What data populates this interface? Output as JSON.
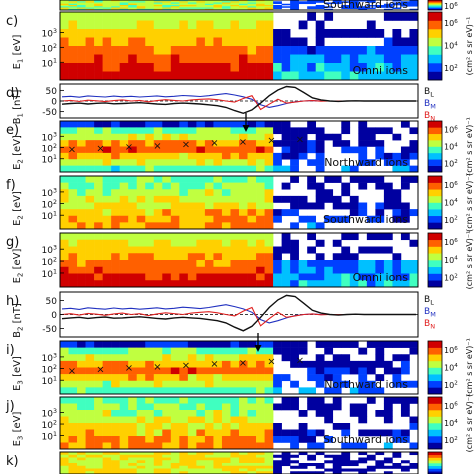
{
  "panels": [
    {
      "id": "b",
      "kind": "spec",
      "letter": "",
      "ylabel": "",
      "tag": "Southward ions",
      "crop": true
    },
    {
      "id": "c",
      "kind": "spec",
      "letter": "c)",
      "ylabel": "E",
      "sub": "1",
      "unit": "[eV]",
      "tag": "Omni ions"
    },
    {
      "id": "d",
      "kind": "line",
      "letter": "d)",
      "ylabel": "B",
      "sub": "1",
      "unit": "[nT]"
    },
    {
      "id": "e",
      "kind": "spec",
      "letter": "e)",
      "ylabel": "E",
      "sub": "2",
      "unit": "[eV]",
      "tag": "Northward ions",
      "marks": true
    },
    {
      "id": "f",
      "kind": "spec",
      "letter": "f)",
      "ylabel": "E",
      "sub": "2",
      "unit": "[eV]",
      "tag": "Southward ions"
    },
    {
      "id": "g",
      "kind": "spec",
      "letter": "g)",
      "ylabel": "E",
      "sub": "2",
      "unit": "[eV]",
      "tag": "Omni ions"
    },
    {
      "id": "h",
      "kind": "line",
      "letter": "h)",
      "ylabel": "B",
      "sub": "2",
      "unit": "[nT]"
    },
    {
      "id": "i",
      "kind": "spec",
      "letter": "i)",
      "ylabel": "E",
      "sub": "3",
      "unit": "[eV]",
      "tag": "Northward ions",
      "marks": true
    },
    {
      "id": "j",
      "kind": "spec",
      "letter": "j)",
      "ylabel": "E",
      "sub": "3",
      "unit": "[eV]",
      "tag": "Southward ions"
    },
    {
      "id": "k",
      "kind": "spec",
      "letter": "k)",
      "ylabel": "",
      "tag": "",
      "crop": true
    }
  ],
  "chart_data": {
    "type": "heatmap",
    "spec_ticks": [
      {
        "base": "10",
        "exp": "3"
      },
      {
        "base": "10",
        "exp": "2"
      },
      {
        "base": "10",
        "exp": "1"
      }
    ],
    "b_ticks": [
      "50",
      "0",
      "-50"
    ],
    "b_lim": [
      -80,
      80
    ],
    "legend": [
      {
        "base": "B",
        "sub": "L",
        "color": "#111111"
      },
      {
        "base": "B",
        "sub": "M",
        "color": "#2030c0"
      },
      {
        "base": "B",
        "sub": "N",
        "color": "#e02020"
      }
    ],
    "colorbar": {
      "label": "(cm² s sr eV)⁻¹",
      "ticks": [
        {
          "base": "10",
          "exp": "6"
        },
        {
          "base": "10",
          "exp": "4"
        },
        {
          "base": "10",
          "exp": "2"
        }
      ],
      "colors": [
        "#0000a0",
        "#0040ff",
        "#00c0ff",
        "#40ffc0",
        "#c0ff40",
        "#ffd000",
        "#ff6000",
        "#d00000"
      ]
    },
    "series": {
      "BL": [
        -15,
        -12,
        -10,
        -14,
        -11,
        -9,
        -13,
        -12,
        -10,
        -8,
        -11,
        -14,
        -16,
        -12,
        -10,
        -12,
        -14,
        -18,
        -22,
        -30,
        -45,
        -58,
        -42,
        -10,
        25,
        52,
        68,
        64,
        40,
        15,
        5,
        0,
        -2,
        0,
        1,
        0,
        0,
        0,
        0,
        0,
        0,
        0
      ],
      "BM": [
        20,
        22,
        18,
        24,
        21,
        19,
        23,
        20,
        22,
        19,
        21,
        24,
        20,
        22,
        26,
        24,
        21,
        25,
        30,
        35,
        28,
        20,
        8,
        -18,
        -30,
        -22,
        -12,
        -4,
        0,
        2,
        0,
        0,
        0,
        0,
        0,
        0,
        0,
        0,
        0,
        0,
        0,
        0
      ],
      "BN": [
        0,
        3,
        -2,
        4,
        1,
        -3,
        2,
        5,
        0,
        3,
        -4,
        2,
        6,
        3,
        0,
        5,
        8,
        10,
        6,
        0,
        -5,
        12,
        25,
        -40,
        -15,
        8,
        -10,
        -5,
        0,
        2,
        -1,
        0,
        0,
        0,
        0,
        0,
        0,
        0,
        0,
        0,
        0,
        0
      ]
    }
  }
}
